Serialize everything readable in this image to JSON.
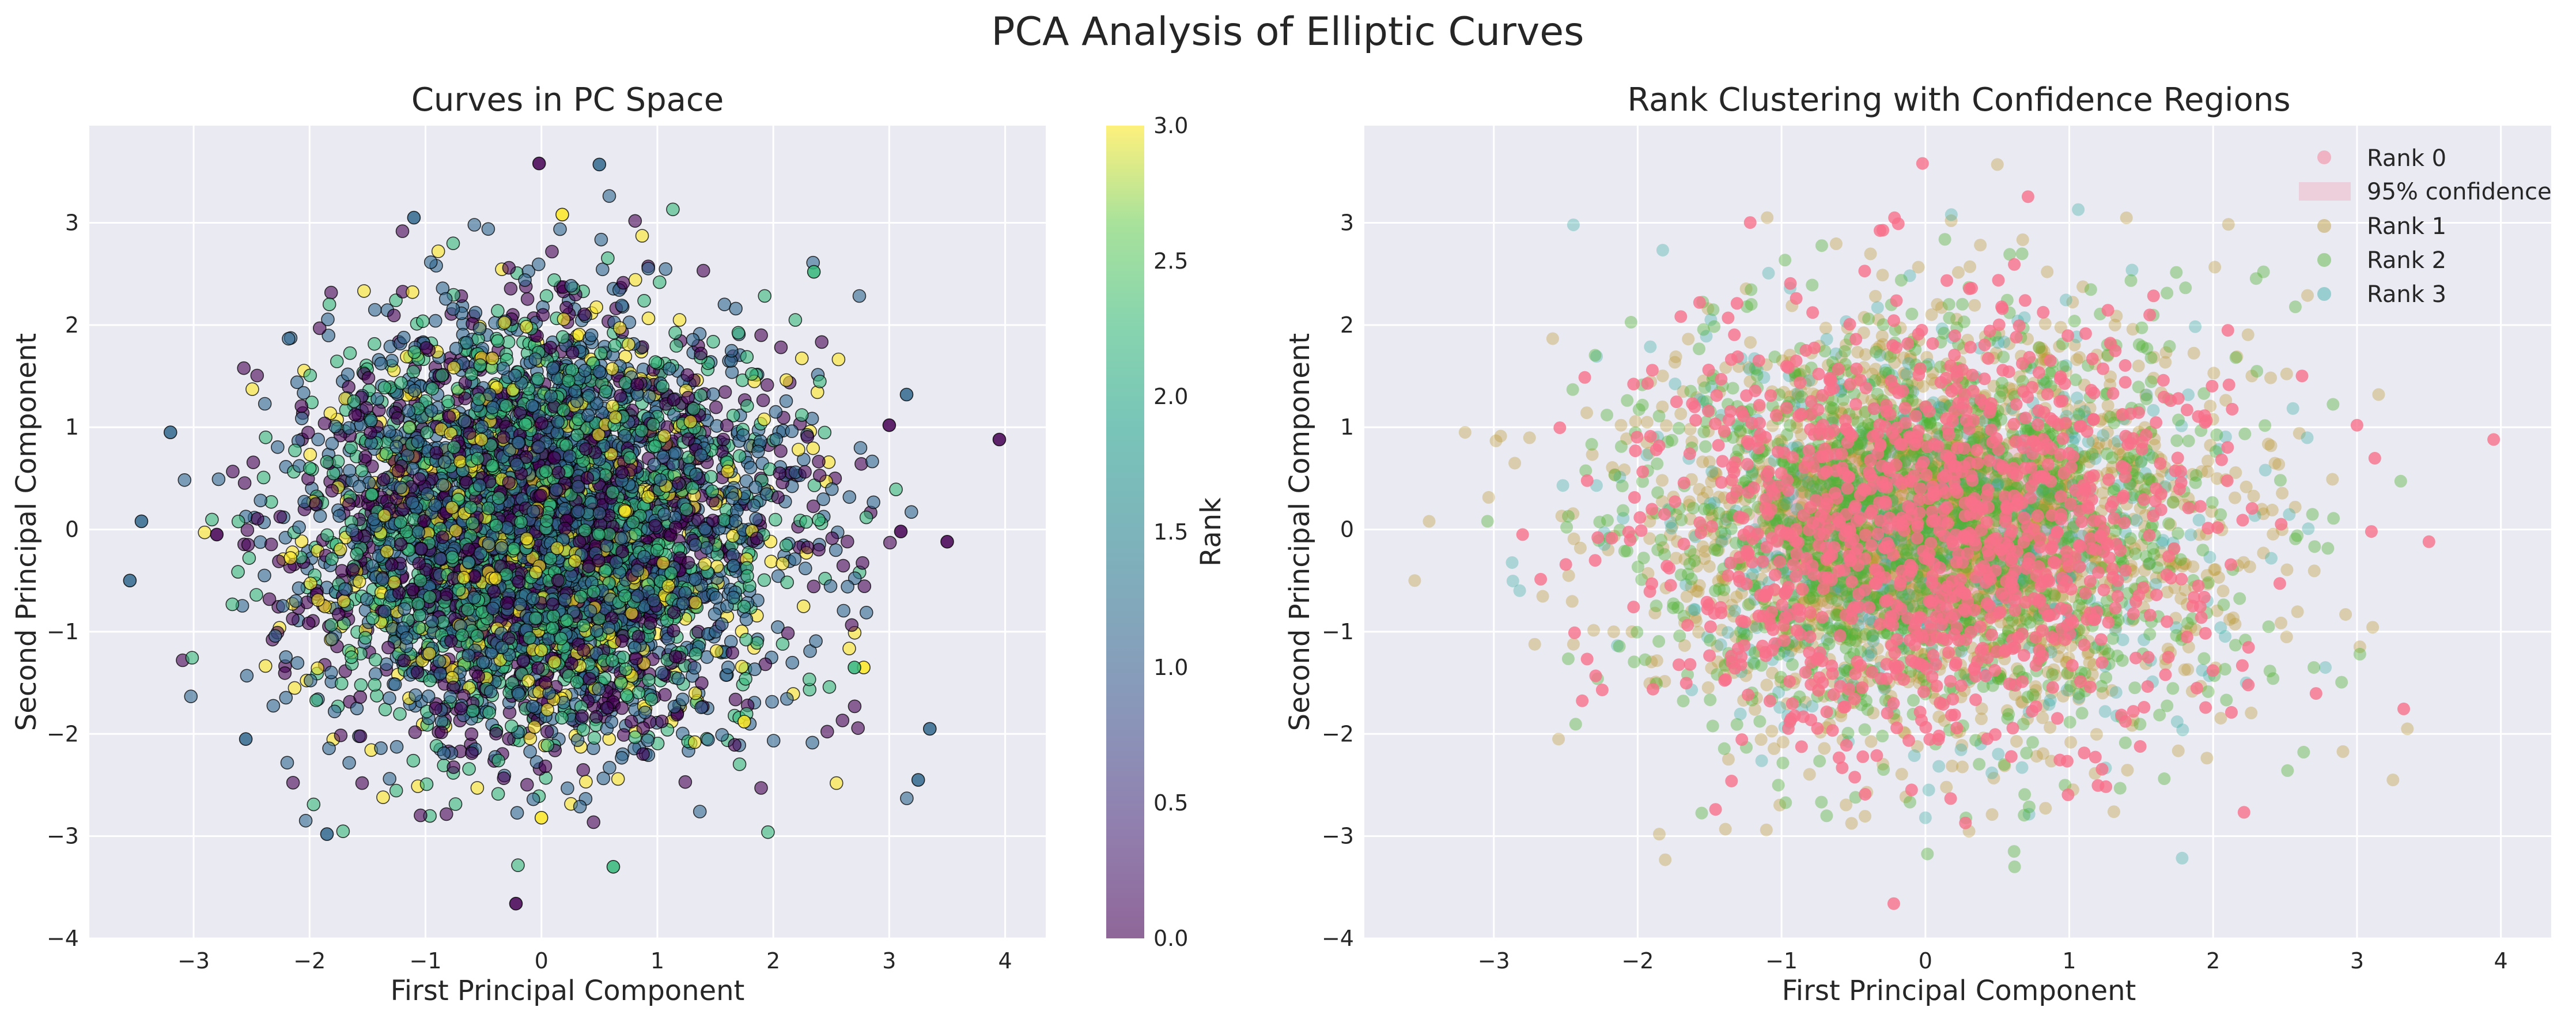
{
  "figure": {
    "title": "PCA Analysis of Elliptic Curves"
  },
  "chart_data": [
    {
      "type": "scatter",
      "title": "Curves in PC Space",
      "xlabel": "First Principal Component",
      "ylabel": "Second Principal Component",
      "xlim": [
        -3.9,
        4.35
      ],
      "ylim": [
        -4.0,
        3.95
      ],
      "x_ticks": [
        -3,
        -2,
        -1,
        0,
        1,
        2,
        3,
        4
      ],
      "y_ticks": [
        -4,
        -3,
        -2,
        -1,
        0,
        1,
        2,
        3
      ],
      "x_tick_labels": [
        "−3",
        "−2",
        "−1",
        "0",
        "1",
        "2",
        "3",
        "4"
      ],
      "y_tick_labels": [
        "−4",
        "−3",
        "−2",
        "−1",
        "0",
        "1",
        "2",
        "3"
      ],
      "grid": true,
      "color_by": "Rank",
      "colormap": "viridis",
      "colorbar": {
        "label": "Rank",
        "range": [
          0.0,
          3.0
        ],
        "ticks": [
          0.0,
          0.5,
          1.0,
          1.5,
          2.0,
          2.5,
          3.0
        ],
        "tick_labels": [
          "0.0",
          "0.5",
          "1.0",
          "1.5",
          "2.0",
          "2.5",
          "3.0"
        ]
      },
      "marker_alpha": 0.6,
      "marker_edge": "#000000",
      "approx_points": 5000,
      "distribution": {
        "center": [
          0,
          0
        ],
        "std_x": 1.0,
        "std_y": 1.0,
        "rank_proportions": [
          0.22,
          0.38,
          0.28,
          0.12
        ]
      },
      "points": [
        {
          "x": 3.95,
          "y": 0.88,
          "rank": 0
        },
        {
          "x": -0.02,
          "y": 3.58,
          "rank": 0
        },
        {
          "x": -0.22,
          "y": -3.66,
          "rank": 0
        },
        {
          "x": -3.55,
          "y": -0.5,
          "rank": 1
        },
        {
          "x": 3.5,
          "y": -0.12,
          "rank": 0
        },
        {
          "x": 3.25,
          "y": -2.45,
          "rank": 1
        },
        {
          "x": 3.35,
          "y": -1.95,
          "rank": 1
        },
        {
          "x": 0.5,
          "y": 3.57,
          "rank": 1
        },
        {
          "x": 0.18,
          "y": 3.08,
          "rank": 3
        },
        {
          "x": -1.1,
          "y": 3.05,
          "rank": 1
        },
        {
          "x": 2.35,
          "y": 2.52,
          "rank": 2
        },
        {
          "x": 3.0,
          "y": 1.02,
          "rank": 0
        },
        {
          "x": 3.15,
          "y": 1.32,
          "rank": 1
        },
        {
          "x": 3.1,
          "y": -0.02,
          "rank": 0
        },
        {
          "x": 2.78,
          "y": -1.35,
          "rank": 3
        },
        {
          "x": 0.0,
          "y": -2.82,
          "rank": 3
        },
        {
          "x": 0.62,
          "y": -3.3,
          "rank": 2
        },
        {
          "x": -1.85,
          "y": -2.98,
          "rank": 1
        },
        {
          "x": -3.45,
          "y": 0.08,
          "rank": 1
        },
        {
          "x": -3.2,
          "y": 0.95,
          "rank": 1
        },
        {
          "x": 2.7,
          "y": -1.35,
          "rank": 2
        },
        {
          "x": 1.75,
          "y": -1.88,
          "rank": 3
        },
        {
          "x": -2.8,
          "y": -0.05,
          "rank": 0
        },
        {
          "x": -2.55,
          "y": -2.05,
          "rank": 1
        }
      ]
    },
    {
      "type": "scatter",
      "title": "Rank Clustering with Confidence Regions",
      "xlabel": "First Principal Component",
      "ylabel": "Second Principal Component",
      "xlim": [
        -3.9,
        4.35
      ],
      "ylim": [
        -4.0,
        3.95
      ],
      "x_ticks": [
        -3,
        -2,
        -1,
        0,
        1,
        2,
        3,
        4
      ],
      "y_ticks": [
        -4,
        -3,
        -2,
        -1,
        0,
        1,
        2,
        3
      ],
      "x_tick_labels": [
        "−3",
        "−2",
        "−1",
        "0",
        "1",
        "2",
        "3",
        "4"
      ],
      "y_tick_labels": [
        "−4",
        "−3",
        "−2",
        "−1",
        "0",
        "1",
        "2",
        "3"
      ],
      "grid": true,
      "legend_position": "top-right",
      "legend": [
        {
          "label": "Rank 0",
          "kind": "marker",
          "color": "#f77189"
        },
        {
          "label": "95% confidence",
          "kind": "patch",
          "color": "#f77189"
        },
        {
          "label": "Rank 1",
          "kind": "marker",
          "color": "#bb9832"
        },
        {
          "label": "Rank 2",
          "kind": "marker",
          "color": "#50b131"
        },
        {
          "label": "Rank 3",
          "kind": "marker",
          "color": "#36ada4"
        }
      ],
      "series": [
        {
          "name": "Rank 0",
          "color": "#f77189",
          "alpha": 0.8,
          "std": 1.0
        },
        {
          "name": "Rank 1",
          "color": "#bb9832",
          "alpha": 0.35,
          "std": 1.0
        },
        {
          "name": "Rank 2",
          "color": "#50b131",
          "alpha": 0.4,
          "std": 1.0
        },
        {
          "name": "Rank 3",
          "color": "#36ada4",
          "alpha": 0.35,
          "std": 1.0
        }
      ],
      "confidence_region": {
        "label": "95% confidence",
        "center": [
          0,
          0
        ],
        "color": "#f77189",
        "alpha": 0.22
      }
    }
  ]
}
